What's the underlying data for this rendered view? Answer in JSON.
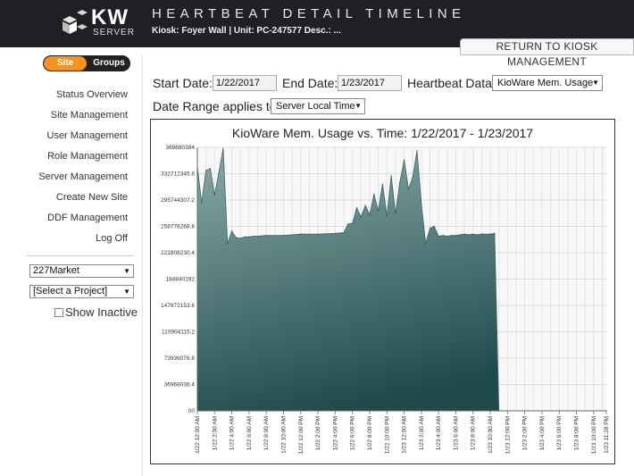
{
  "header": {
    "logo_text": "KW",
    "logo_sub": "SERVER",
    "title": "HEARTBEAT DETAIL TIMELINE",
    "kiosk_line": "Kiosk: Foyer Wall | Unit: PC-247577    Desc.: ...",
    "return_button": "RETURN TO KIOSK MANAGEMENT"
  },
  "toggle": {
    "site": "Site",
    "groups": "Groups",
    "active": "Site"
  },
  "nav": {
    "items": [
      "Status Overview",
      "Site Management",
      "User Management",
      "Role Management",
      "Server Management",
      "Create New Site",
      "DDF Management",
      "Log Off"
    ]
  },
  "sidebar": {
    "market_select": "227Market",
    "project_select": "[Select a Project]",
    "show_inactive": "Show Inactive"
  },
  "filters": {
    "start_date_label": "Start Date:",
    "start_date_value": "1/22/2017",
    "end_date_label": "End Date:",
    "end_date_value": "1/23/2017",
    "heartbeat_label": "Heartbeat Data:",
    "heartbeat_value": "KioWare Mem. Usage",
    "range_label": "Date Range applies to:",
    "range_value": "Server Local Time"
  },
  "colors": {
    "accent": "#f7931e",
    "header_bg": "#1f2023",
    "area_top": "#8aaaa9",
    "area_bottom": "#1e4a4c"
  },
  "chart_data": {
    "type": "area",
    "title": "KioWare Mem. Usage vs. Time: 1/22/2017 - 1/23/2017",
    "ylim": [
      0,
      369680384
    ],
    "y_ticks": [
      "00",
      "36968038.4",
      "73936076.8",
      "110904115.2",
      "147872153.6",
      "184840192",
      "221808230.4",
      "258776268.8",
      "295744307.2",
      "332712345.6",
      "369680384"
    ],
    "x_ticks": [
      "1/22 12:00 AM",
      "1/22 2:00 AM",
      "1/22 4:00 AM",
      "1/22 6:00 AM",
      "1/22 8:00 AM",
      "1/22 10:00 AM",
      "1/22 12:00 PM",
      "1/22 2:00 PM",
      "1/22 4:00 PM",
      "1/22 6:00 PM",
      "1/22 8:00 PM",
      "1/22 10:00 PM",
      "1/23 12:00 AM",
      "1/23 2:00 AM",
      "1/23 4:00 AM",
      "1/23 6:00 AM",
      "1/23 8:00 AM",
      "1/23 10:00 AM",
      "1/23 12:00 PM",
      "1/23 2:00 PM",
      "1/23 4:00 PM",
      "1/23 6:00 PM",
      "1/23 8:00 PM",
      "1/23 10:00 PM",
      "1/23 11:28 PM"
    ],
    "x_hours": [
      0,
      0.5,
      1.0,
      1.5,
      2.0,
      2.5,
      3.0,
      3.5,
      4.0,
      4.5,
      5.0,
      5.5,
      6.0,
      6.5,
      7.0,
      8.0,
      10.0,
      12.0,
      14.0,
      16.0,
      17.0,
      17.5,
      18.0,
      18.5,
      19.0,
      19.5,
      20.0,
      20.5,
      21.0,
      21.5,
      22.0,
      22.5,
      23.0,
      23.5,
      24.0,
      24.5,
      25.0,
      25.5,
      26.0,
      26.5,
      27.0,
      27.5,
      28.0,
      28.5,
      29.0,
      29.5,
      30.0,
      30.5,
      31.0,
      31.5,
      32.0,
      32.5,
      33.0,
      34.0,
      34.5,
      35.0,
      47.47
    ],
    "values": [
      342000000,
      292000000,
      337000000,
      340000000,
      303000000,
      334000000,
      368000000,
      235000000,
      252000000,
      243000000,
      242000000,
      244000000,
      244000000,
      245000000,
      245000000,
      246000000,
      246000000,
      248000000,
      248000000,
      249000000,
      250000000,
      262000000,
      263000000,
      285000000,
      272000000,
      288000000,
      275000000,
      304000000,
      281000000,
      318000000,
      273000000,
      330000000,
      277000000,
      320000000,
      352000000,
      311000000,
      328000000,
      365000000,
      290000000,
      235000000,
      256000000,
      259000000,
      245000000,
      246000000,
      245000000,
      246000000,
      246000000,
      247000000,
      248000000,
      247000000,
      248000000,
      247000000,
      248000000,
      248000000,
      249000000,
      0,
      0
    ],
    "grid": true,
    "legend": "none"
  }
}
